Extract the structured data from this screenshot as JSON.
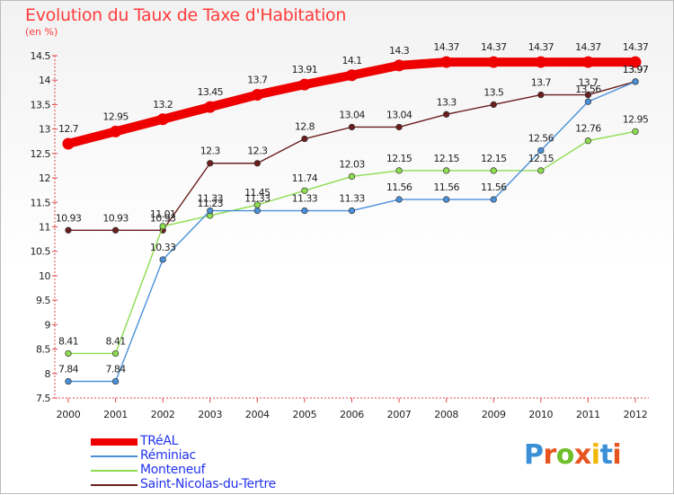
{
  "title": "Evolution du Taux de Taxe d'Habitation",
  "subtitle": "(en %)",
  "logo": {
    "letters": [
      "P",
      "r",
      "o",
      "x",
      "i",
      "t",
      "i"
    ],
    "colors": [
      "#3b8fd6",
      "#e8541e",
      "#6fbf2a",
      "#e8541e",
      "#f2b705",
      "#3b8fd6",
      "#e8541e"
    ]
  },
  "chart_data": {
    "type": "line",
    "title": "Evolution du Taux de Taxe d'Habitation",
    "ylabel": "(en %)",
    "xlabel": "",
    "x": [
      "2000",
      "2001",
      "2002",
      "2003",
      "2004",
      "2005",
      "2006",
      "2007",
      "2008",
      "2009",
      "2010",
      "2011",
      "2012"
    ],
    "ylim": [
      7.5,
      14.5
    ],
    "yticks": [
      "7.5",
      "8",
      "8.5",
      "9",
      "9.5",
      "10",
      "10.5",
      "11",
      "11.5",
      "12",
      "12.5",
      "13",
      "13.5",
      "14",
      "14.5"
    ],
    "grid": false,
    "legend_position": "bottom-left",
    "series": [
      {
        "name": "TRéAL",
        "color": "#ee0000",
        "emphasis": "thick",
        "values": [
          12.7,
          12.95,
          13.2,
          13.45,
          13.7,
          13.91,
          14.1,
          14.3,
          14.37,
          14.37,
          14.37,
          14.37,
          14.37
        ],
        "labels": [
          "12.7",
          "12.95",
          "13.2",
          "13.45",
          "13.7",
          "13.91",
          "14.1",
          "14.3",
          "14.37",
          "14.37",
          "14.37",
          "14.37",
          "14.37"
        ]
      },
      {
        "name": "Réminiac",
        "color": "#4a90d9",
        "values": [
          7.84,
          7.84,
          10.33,
          11.33,
          11.33,
          11.33,
          11.33,
          11.56,
          11.56,
          11.56,
          12.56,
          13.56,
          13.97
        ],
        "labels": [
          "7.84",
          "7.84",
          "10.33",
          "11.33",
          "11.33",
          "11.33",
          "11.33",
          "11.56",
          "11.56",
          "11.56",
          "12.56",
          "13.56",
          "13.97"
        ]
      },
      {
        "name": "Monteneuf",
        "color": "#8edc50",
        "values": [
          8.41,
          8.41,
          11.01,
          11.23,
          11.45,
          11.74,
          12.03,
          12.15,
          12.15,
          12.15,
          12.15,
          12.76,
          12.95
        ],
        "labels": [
          "8.41",
          "8.41",
          "11.01",
          "11.23",
          "11.45",
          "11.74",
          "12.03",
          "12.15",
          "12.15",
          "12.15",
          "12.15",
          "12.76",
          "12.95"
        ]
      },
      {
        "name": "Saint-Nicolas-du-Tertre",
        "color": "#6b1e1e",
        "values": [
          10.93,
          10.93,
          10.93,
          12.3,
          12.3,
          12.8,
          13.04,
          13.04,
          13.3,
          13.5,
          13.7,
          13.7,
          13.97
        ],
        "labels": [
          "10.93",
          "10.93",
          "10.93",
          "12.3",
          "12.3",
          "12.8",
          "13.04",
          "13.04",
          "13.3",
          "13.5",
          "13.7",
          "13.7",
          "13.97"
        ]
      }
    ]
  }
}
